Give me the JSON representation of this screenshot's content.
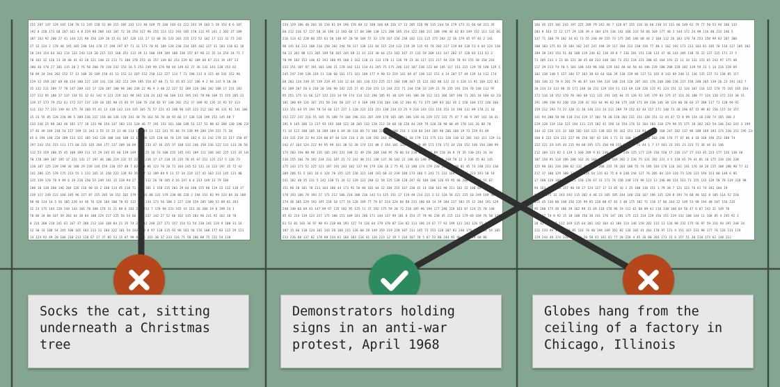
{
  "colors": {
    "background": "#84a58f",
    "grid_line": "#3e4a43",
    "wrong_badge": "#b6461c",
    "correct_badge": "#2d8a5e",
    "caption_bg": "#e8e8e8"
  },
  "panels": [
    {
      "name": "left",
      "rows": [
        "251 207 147 129 165 138 70 11 245 158 52 60 215 205 242 131 40 169 75 240 103 63 222 243 39 103 5 28 153 6 6 107",
        "192 8 210 173 68 187 161 4 0 219 88 208 143 107 72 18 254 117 96 255 113 112 193 105 170 112 95 241 2 202 37 189",
        "187 163 92 200 27 41 144 221 98 156 139 20 15 61 187 128 111 27 13 60 36 133 203 215 172 52 102 17 121 32 73 242",
        "27 32 234 2 170 48 145 165 198 144 178 27 198 197 87 71 31 173 70 91 189 128 230 234 185 102 127 31 203 118 62 18",
        "20 244 154 64 163 214 133 243 124 20 215 215 168 252 113 39 13 100 199 189 188 130 157 87 96 22 35 14 254 24 71 7",
        "70 162 32 126 23 20 40 41 43 20 121 240 12 213 71 180 170 253 16 157 149 82 153 229 82 109 68 87 213 19 197 23",
        "106 36 170 27 181 115 20 2 76 50 200 78 110 232 153 16 5 253 249 99 176 90 44 149 62 37 36 133 143 138 252 62",
        "50 89 24 244 202 152 37 13 108 26 189 150 41 13 152 12 207 152 230 112 227 114 7 73 190 113 8 115 40 241 152 96",
        "229 12 159 207 69 40 134 108 227 128 141 118 142 223 249 195 154 67 88 71 52 45 65 117 196 9 2 94 143 9 30 30",
        "35 132 211 209 77 78 147 209 115 17 120 107 180 98 106 238 22 96 9 3 40 22 227 52 189 128 186 182 108 17 231 181",
        "227 212 95 180 27 237 134 51 12 61 142 9 121 229 161 98 182 120 24 142 60 184 113 195 241 78 90 109 72 155 205 23",
        "139 17 173 79 252 61 172 227 237 139 10 165 90 25 85 97 160 76 218 82 97 140 202 252 37 109 92 135 32 92 57 113",
        "111 132 77 233 149 44 175 78 166 55 41 13 138 142 114 135 165 71 57 221 43 240 96 145 223 212 162 46 131 92 141 106",
        "15 23 55 85 128 220 80 5 209 236 222 118 60 136 178 243 38 78 163 50 78 38 92 66 17 138 126 199 152 145 68 7",
        "233 246 25 98 203 46 181 177 10 133 90 154 147 103 131 128 46 77 191 133 161 100 148 53 127 53 88 42 208 130 190 238",
        "37 45 49 249 218 54 157 199 23 243 3 55 15 15 31 48 114 13 219 13 112 241 55 84 74 239 99 209 159 215 71 28",
        "65 6 194 148 226 209 133 121 105 142 128 108 146 108 13 153 96 125 120 84 78 135 186 182 6 33 242 178 22 217 150 87",
        "197 243 151 215 111 171 60 223 165 204 177 137 209 10 69 223 233 47 36 155 37 168 132 246 150 236 122 131 113 28 50 40",
        "112 53 159 188 35 45 100 189 211 15 29 245 65 66 139 149 134 25 16 53 100 155 145 141 189 111 166 102 225 122 33 140",
        "70 178 109 107 195 17 221 132 17 197 46 106 219 232 57 22 51 236 17 17 218 15 235 78 45 67 213 125 217 5 126 73",
        "138 107 125 239 198 36 100 29 239 144 159 230 157 48 7 62 234 86 123 76 20 71 164 245 52 131 14 223 197 35 72 43",
        "141 206 125 178 175 233 55 1 232 165 31 250 222 128 93 35 177 13 109 84 9 11 57 34 219 117 42 163 231 145 131 80",
        "135 139 170 78 9 89 6 39 218 150 55 249 141 15 228 94 27 159 112 26 70 105 4 16 247 6 4 213 149 13 79 184",
        "200 10 130 208 146 204 126 116 90 16 2 168 114 45 218 71 199 101 2 158 215 203 29 64 240 155 80 119 22 132 118 37",
        "239 117 249 233 166 185 96 227 87 215 205 10 152 102 179 61 91 80 132 179 238 86 220 2 244 151 83 99 233 84 36 108",
        "98 96 134 14 5 56 105 239 44 46 76 126 104 100 70 92 113 117 134 173 56 188 2 227 138 159 205 100 53 89 82 183",
        "32 23 175 144 226 244 143 166 78 188 178 31 21 88 0 183 213 233 7 170 98 233 165 43 213 26 204 19 0 199 24 1",
        "78 86 34 88 107 49 203 64 30 84 100 229 217 225 56 54 66 200 237 142 27 52 66 162 135 203 96 231 92 162 10 70",
        "0 214 208 218 241 61 167 37 208 212 116 168 84 21 35 74 236 12 248 227 171 157 154 53 54 238 241 219 9 100 31 16",
        "12 30 33 188 54 245 100 165 183 213 21 104 222 161 54 143 100 8 97 118 115 93 96 101 58 176 100 177 83 122 29 121",
        "14 123 92 49 20 106 210 213 120 67 17 37 85 53 15 87 99 8 245 243 30 37 233 116 71 58 106 80 75 211 54 118"
      ]
    },
    {
      "name": "center",
      "rows": [
        "234 129 186 40 203 16 210 61 69 196 176 88 12 168 166 68 156 37 13 205 126 96 135 244 56 179 173 11 66 68 221 35",
        "60 112 236 57 227 50 36 196 13 103 68 17 60 108 130 121 208 185 154 122 208 111 188 190 44 62 83 149 152 113 132 66",
        "216 114 42 228 86 255 63 58 148 87 28 58 104 57 33 178 167 156 238 102 111 115 175 203 22 36 179 45 97 83 2 141",
        "96 141 64 213 108 216 150 182 246 50 117 138 131 64 215 224 112 219 39 115 93 78 203 217 219 84 118 51 4 64 124 130",
        "50 23 201 88 131 205 199 50 165 245 69 12 41 223 30 64 153 102 167 37 133 59 209 141 147 202 37 120 83 113 61 2",
        "78 99 182 153 140 42 193 188 95 160 3 162 110 31 113 178 11 136 79 23 36 117 151 217 94 219 78 93 155 38 150 243",
        "233 151 187 97 191 101 140 21 178 102 113 114 41 245 75 175 246 132 107 230 123 60 145 117 113 222 129 78 140 129 113 135",
        "245 247 249 138 219 11 130 60 161 171 161 189 177 9 90 53 219 142 69 47 130 132 251 4 14 207 57 49 139 14 112 174",
        "68 203 134 249 35 139 219 45 134 12 64 181 110 223 225 217 184 198 187 15 122 182 88 132 33 4 128 13 91 169 222 82",
        "92 209 207 56 6 210 20 146 90 142 225 27 45 210 153 13 144 222 71 244 158 33 249 21 78 155 191 154 70 148 112 97",
        "95 251 175 11 66 127 122 233 14 59 174 114 112 196 185 91 38 129 191 186 38 112 113 206 187 196 71 201 18 104 62 216",
        "101 180 89 126 167 151 58 241 58 137 17 6 109 198 216 164 130 12 204 91 73 175 189 83 162 45 2 156 104 172 146 166",
        "133 151 64 55 194 78 54 60 117 227 1 120 222 223 211 138 234 23 25 9 210 143 112 154 153 14 196 111 89 178 21 16",
        "152 227 247 210 55 165 76 188 74 104 196 231 207 249 178 165 185 186 139 16 229 172 133 75 47 7 46 9 197 142 10 41",
        "191 9 145 186 13 237 93 193 108 122 30 205 132 120 212 28 68 10 226 44 249 79 120 28 90 60 49 170 141 26 88 70",
        "71 14 122 180 105 16 209 109 6 69 38 118 69 73 188 119 49 100 216 3 118 84 244 205 90 206 168 19 73 129 91 89",
        "134 131 234 22 94 224 88 87 64 124 214 3 26 134 192 243 86 254 171 10 179 113 175 131 120 130 32 201 143 111 129 114",
        "242 47 164 124 222 94 95 99 161 30 52 38 174 131 88 2 154 101 126 114 129 89 171 176 172 34 216 152 146 154 200 99",
        "174 203 194 80 98 135 165 193 231 188 22 49 156 204 148 95 70 86 54 210 223 167 89 210 36 8 74 35 130 241 24 34",
        "236 255 201 78 192 234 231 187 21 72 243 40 211 148 137 36 102 21 188 63 140 6 138 31 148 70 12 3 236 35 83 145",
        "175 143 173 52 225 121 187 191 243 102 137 94 179 136 10 2 75 91 13 100 174 179 230 245 42 48 81 45 74 240 233 130",
        "209 206 51 5 181 18 6 124 78 155 125 238 223 148 192 68 32 239 180 173 186 5 243 71 231 164 57 106 223 191 50 54",
        "241 182 48 35 231 5 242 130 51 34 12 139 123 240 12 58 125 138 128 247 83 104 106 126 93 95 48 208 199 29 55 67",
        "151 96 28 101 78 211 164 186 44 173 91 56 84 102 64 32 204 215 167 238 42 14 168 101 90 211 182 32 188 65 95 126",
        "178 193 106 78 193 27 171 212 106 210 200 236 142 51 125 151 17 119 48 214 221 2 12 110 58 221 215 10 249 169 40 76",
        "174 46 105 229 193 197 228 10 177 24 128 249 77 79 67 214 224 84 88 233 180 68 14 39 184 237 183 25 12 204 191 129",
        "240 140 66 69 43 147 89 97 135 102 95 125 11 37 192 175 59 20 72 218 185 96 194 177 248 226 163 87 124 25 78 140",
        "45 42 224 139 123 227 175 186 151 109 181 206 171 144 137 99 181 8 154 37 78 96 230 45 215 113 179 69 169 76 50 125",
        "61 53 81 103 36 97 98 93 238 80 193 127 74 136 64 179 170 87 234 82 113 196 24 67 77 91 199 131 243 126 55 172",
        "197 15 66 110 124 161 143 20 166 215 136 60 28 149 159 219 228 107 211 145 73 153 128 207 81 240 179 198 216 54 105 187",
        "233 236 60 137 82 178 88 234 61 166 103 216 41 136 223 12 19 7 234 107 78 5 67 53 80 244 95 90 184 249 68 86"
      ]
    },
    {
      "name": "right",
      "rows": [
        "166 45 155 101 243 197 225 209 79 242 46 7 128 87 155 116 16 66 230 31 131 66 149 62 79 77 50 53 94 166 133",
        "203 8 163 72 12 177 29 128 39 4 104 174 130 142 166 233 54 66 169 177 48 3 144 172 24 98 116 40 233 246 5",
        "137 71 160 79 102 34 81 73 55 240 49 155 73 175 205 186 68 44 2 168 112 26 183 170 78 253 150 99 83 207 108",
        "100 183 175 93 19 184 162 247 247 198 29 117 204 223 230 156 77 40 1 162 192 173 213 103 81 105 78 116 127 205 102",
        "189 38 243 153 51 46 100 119 246 62 138 39 8 7 136 201 151 138 133 47 46 143 205 138 76 22 137 225 171 37 5",
        "71 185 233 1 23 66 221 38 45 60 233 248 103 73 252 234 223 208 65 164 191 22 11 34 132 153 65 243 97 175 48",
        "117 39 213 74 78 5 183 148 143 90 166 129 102 48 64 58 44 196 239 188 208 228 182 139 59 23 1 14 216 228 69",
        "102 138 140 5 127 104 57 163 38 83 64 166 39 130 239 86 137 51 165 8 143 69 240 11 136 135 237 53 138 85 117",
        "186 146 22 78 9 202 79 46 87 144 194 224 148 234 128 207 161 176 248 200 236 237 158 240 205 139 26 23 191 162 7",
        "30 234 23 113 88 35 171 248 10 231 129 154 51 113 69 128 226 115 91 124 151 12 116 167 116 122 176 75 165 165 164",
        "172 116 18 152 170 70 103 68 112 131 191 145 64 15 126 53 145 179 83 175 37 114 26 108 77 124 120 172 233 38 31",
        "191 190 140 93 240 118 228 42 161 64 96 82 60 175 148 171 69 230 146 30 124 80 36 64 37 208 117 71 120 94 92",
        "159 212 193 73 22 120 11 16 146 213 14 211 209 79 152 62 44 157 171 140 73 36 196 87 15 89 82 156 115 24 157",
        "141 94 200 58 90 118 214 119 17 182 70 28 128 203 231 151 120 151 13 44 47 72 8 89 124 10 230 74 165 160 2",
        "229 120 134 110 222 184 111 215 182 41 196 14 154 176 32 164 203 110 179 98 55 175 10 102 163 54 146 242 243 3 199",
        "144 32 226 111 32 168 202 116 122 138 101 91 162 151 114 93 37 46 168 247 182 137 96 108 169 193 174 230 153 195 234",
        "160 6 232 124 221 227 96 158 107 43 126 1 71 31 160 189 86 21 203 246 176 77 67 86 4 10 168 196 252 188 74",
        "122 221 24 145 44 215 94 68 195 171 250 98 155 3 2 15 71 44 1 7 17 181 23 191 21 223 73 36 44 43 146",
        "212 104 123 82 3 139 1 160 209 9 61 240 167 86 230 125 177 229 216 150 17 216 217 27 133 45 223 177 126 130 30",
        "107 158 95 118 196 208 162 26 164 19 186 169 202 2 236 75 131 192 231 4 5 158 65 79 41 81 16 175 134 156 230",
        "125 98 161 244 208 62 132 102 223 208 235 78 203 186 55 74 185 103 170 116 161 141 176 38 26 235 108 180 90 77 32",
        "217 17 180 129 108 13 127 124 54 135 62 75 8 8 248 244 127 76 205 84 119 110 73 120 123 194 153 80 140 6 85",
        "17 180 129 108 177 115 150 176 67 31 171 74 158 248 174 96 121 13 246 88 114 161 71 155 112 129 58 70 119 220 98",
        "94 163 102 118 157 90 58 27 124 127 17 13 85 16 2 35 100 138 151 1 79 38 7 121 123 76 61 74 242 184 19",
        "93 50 175 32 243 192 115 202 4 46 23 105 185 244 140 226 167 196 135 120 8 193 74 60 48 162 8 105 114 52 210",
        "115 45 136 80 140 156 235 99 85 228 80 67 83 2 40 175 102 71 118 17 86 244 22 149 53 98 194 40 107 156 235",
        "95 200 175 46 106 39 162 89 31 69 110 176 96 19 112 61 60 89 41 216 130 160 64 56 47 6 67 143 31 149 70",
        "199 17 74 8 92 15 18 100 156 36 241 170 147 181 175 223 234 229 156 151 229 142 108 144 11 168 85 4 245 92 2",
        "28 32 222 17 112 169 115 64 201 142 164 43 186 114 146 158 202 115 13 126 90 232 175 56 97 59 116 94 197 248 34",
        "211 233 49 1 46 249 85 116 70 40 194 189 201 82 136 102 41 201 170 97 171 4 151 167 233 90 177 76 126 131 119",
        "129 244 48 174 228 228 73 26 50 41 161 81 77 28 218 4 45 26 80 203 173 15 6 157 51 38 218 173 62 148 212"
      ]
    }
  ],
  "captions": [
    {
      "text": "Socks the cat, sitting underneath a Christmas tree",
      "status": "wrong"
    },
    {
      "text": "Demonstrators holding signs in an anti-war protest, April 1968",
      "status": "correct"
    },
    {
      "text": "Globes hang from the ceiling of a factory in Chicago, Illinois",
      "status": "wrong"
    }
  ],
  "icons": {
    "wrong": "cross-mark-icon",
    "correct": "check-mark-icon"
  }
}
